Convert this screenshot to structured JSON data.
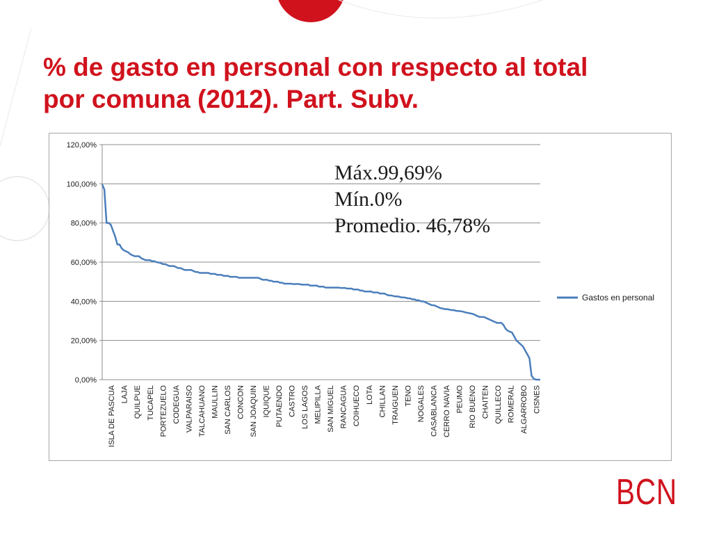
{
  "slide": {
    "title_line1": "% de gasto en personal con respecto al total",
    "title_line2": "por comuna (2012). Part. Subv.",
    "logo_text": "BCN",
    "colors": {
      "title": "#d0121d",
      "series": "#4a7ebb",
      "logo": "#d0121d"
    }
  },
  "annotation": {
    "max": "Máx.99,69%",
    "min": "Mín.0%",
    "mean": "Promedio. 46,78%"
  },
  "chart_data": {
    "type": "line",
    "ylim": [
      0,
      120
    ],
    "y_ticks": [
      {
        "value": 0,
        "label": "0,00%"
      },
      {
        "value": 20,
        "label": "20,00%"
      },
      {
        "value": 40,
        "label": "40,00%"
      },
      {
        "value": 60,
        "label": "60,00%"
      },
      {
        "value": 80,
        "label": "80,00%"
      },
      {
        "value": 100,
        "label": "100,00%"
      },
      {
        "value": 120,
        "label": "120,00%"
      }
    ],
    "grid": true,
    "legend": "right",
    "x_labels": [
      "ISLA DE PASCUA",
      "LAJA",
      "QUILPUE",
      "TUCAPEL",
      "PORTEZUELO",
      "CODEGUA",
      "VALPARAISO",
      "TALCAHUANO",
      "MAULLIN",
      "SAN CARLOS",
      "CONCON",
      "SAN JOAQUIN",
      "IQUIQUE",
      "PUTAENDO",
      "CASTRO",
      "LOS LAGOS",
      "MELIPILLA",
      "SAN MIGUEL",
      "RANCAGUA",
      "COIHUECO",
      "LOTA",
      "CHILLAN",
      "TRAIGUEN",
      "TENO",
      "NOGALES",
      "CASABLANCA",
      "CERRO NAVIA",
      "PEUMO",
      "RIO BUENO",
      "CHAITEN",
      "QUILLECO",
      "ROMERAL",
      "ALGARROBO",
      "CISNES"
    ],
    "series": [
      {
        "name": "Gastos en personal",
        "values": [
          99.69,
          97,
          80,
          80,
          79,
          76,
          73,
          69,
          69,
          67,
          66,
          65.5,
          65,
          64,
          63.5,
          63,
          63,
          63,
          62,
          61.5,
          61,
          61,
          61,
          60.5,
          60.5,
          60,
          59.8,
          59.5,
          59,
          59,
          58.5,
          58,
          58,
          58,
          57.5,
          57,
          57,
          56.5,
          56,
          56,
          56,
          56,
          55.5,
          55,
          55,
          54.5,
          54.5,
          54.5,
          54.5,
          54.5,
          54,
          54,
          54,
          53.5,
          53.5,
          53.5,
          53,
          53,
          53,
          52.5,
          52.5,
          52.5,
          52.5,
          52,
          52,
          52,
          52,
          52,
          52,
          52,
          52,
          52,
          52,
          51.5,
          51,
          51,
          51,
          50.5,
          50.5,
          50,
          50,
          50,
          49.5,
          49.5,
          49,
          49,
          49,
          49,
          48.8,
          48.8,
          48.8,
          48.8,
          48.5,
          48.5,
          48.5,
          48.5,
          48,
          48,
          48,
          48,
          47.5,
          47.5,
          47.5,
          47,
          47,
          47,
          47,
          47,
          47,
          47,
          46.8,
          46.8,
          46.8,
          46.5,
          46.5,
          46.5,
          46,
          46,
          46,
          45.5,
          45.5,
          45,
          45,
          45,
          45,
          44.5,
          44.5,
          44.5,
          44,
          44,
          44,
          43.5,
          43,
          43,
          42.8,
          42.5,
          42.5,
          42.3,
          42,
          42,
          41.8,
          41.5,
          41.5,
          41,
          41,
          40.5,
          40.5,
          40,
          40,
          39.5,
          39,
          38.5,
          38,
          38,
          37.5,
          37,
          36.5,
          36.3,
          36,
          36,
          35.8,
          35.5,
          35.5,
          35.2,
          35,
          35,
          34.8,
          34.5,
          34.2,
          34,
          33.8,
          33.5,
          33,
          32.5,
          32,
          32,
          32,
          31.5,
          31,
          30.5,
          30,
          29.5,
          29,
          29,
          29,
          28,
          26,
          25,
          24.5,
          24,
          22,
          20,
          19,
          18,
          17,
          15,
          13,
          11,
          2,
          0.5,
          0,
          0,
          0
        ]
      }
    ]
  }
}
